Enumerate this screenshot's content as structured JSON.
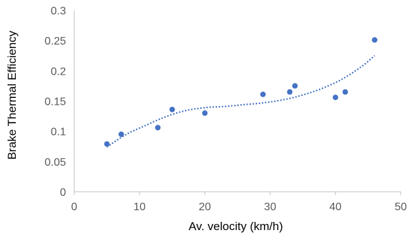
{
  "chart_data": {
    "type": "scatter",
    "title": "",
    "xlabel": "Av. velocity (km/h)",
    "ylabel": "Brake Thermal Efficiency",
    "xlim": [
      0,
      50
    ],
    "ylim": [
      0,
      0.3
    ],
    "x_ticks": [
      "0",
      "10",
      "20",
      "30",
      "40",
      "50"
    ],
    "y_ticks": [
      "0",
      "0.05",
      "0.1",
      "0.15",
      "0.2",
      "0.25",
      "0.3"
    ],
    "grid": false,
    "legend": "none",
    "point_color": "#4472c4",
    "trendline_color": "#4472c4",
    "series": [
      {
        "points": [
          {
            "x": 5.0,
            "y": 0.079
          },
          {
            "x": 7.2,
            "y": 0.095
          },
          {
            "x": 12.8,
            "y": 0.106
          },
          {
            "x": 15.0,
            "y": 0.136
          },
          {
            "x": 20.0,
            "y": 0.13
          },
          {
            "x": 28.9,
            "y": 0.161
          },
          {
            "x": 33.0,
            "y": 0.165
          },
          {
            "x": 33.8,
            "y": 0.175
          },
          {
            "x": 40.0,
            "y": 0.156
          },
          {
            "x": 41.5,
            "y": 0.165
          },
          {
            "x": 46.0,
            "y": 0.251
          }
        ],
        "trendline": {
          "type": "polynomial",
          "points": [
            {
              "x": 5,
              "y": 0.074
            },
            {
              "x": 8,
              "y": 0.095
            },
            {
              "x": 11,
              "y": 0.11
            },
            {
              "x": 14,
              "y": 0.124
            },
            {
              "x": 17,
              "y": 0.134
            },
            {
              "x": 20,
              "y": 0.139
            },
            {
              "x": 23,
              "y": 0.141
            },
            {
              "x": 26,
              "y": 0.144
            },
            {
              "x": 29,
              "y": 0.147
            },
            {
              "x": 32,
              "y": 0.152
            },
            {
              "x": 35,
              "y": 0.16
            },
            {
              "x": 38,
              "y": 0.171
            },
            {
              "x": 41,
              "y": 0.186
            },
            {
              "x": 44,
              "y": 0.207
            },
            {
              "x": 46,
              "y": 0.225
            }
          ]
        }
      }
    ]
  }
}
